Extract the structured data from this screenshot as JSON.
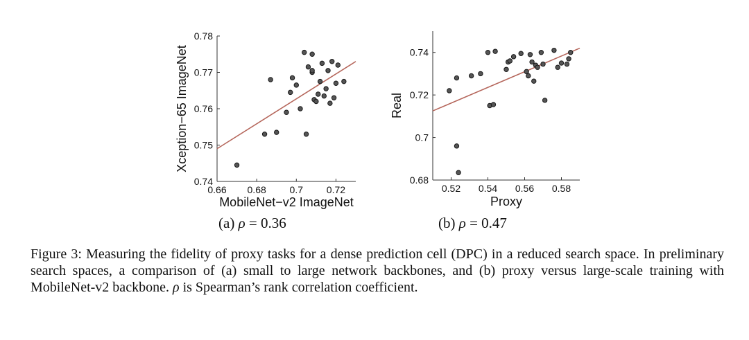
{
  "chart_data": [
    {
      "type": "scatter",
      "id": "a",
      "xlabel": "MobileNet−v2 ImageNet",
      "ylabel": "Xception−65 ImageNet",
      "xlim": [
        0.66,
        0.73
      ],
      "ylim": [
        0.74,
        0.78
      ],
      "xticks": [
        0.66,
        0.68,
        0.7,
        0.72
      ],
      "xtick_labels": [
        "0.66",
        "0.68",
        "0.7",
        "0.72"
      ],
      "yticks": [
        0.74,
        0.75,
        0.76,
        0.77,
        0.78
      ],
      "ytick_labels": [
        "0.74",
        "0.75",
        "0.76",
        "0.77",
        "0.78"
      ],
      "points": [
        [
          0.67,
          0.7445
        ],
        [
          0.684,
          0.753
        ],
        [
          0.687,
          0.768
        ],
        [
          0.69,
          0.7535
        ],
        [
          0.695,
          0.759
        ],
        [
          0.697,
          0.7645
        ],
        [
          0.698,
          0.7685
        ],
        [
          0.7,
          0.7665
        ],
        [
          0.702,
          0.76
        ],
        [
          0.704,
          0.7755
        ],
        [
          0.705,
          0.753
        ],
        [
          0.706,
          0.7715
        ],
        [
          0.708,
          0.77
        ],
        [
          0.708,
          0.7705
        ],
        [
          0.708,
          0.775
        ],
        [
          0.709,
          0.7625
        ],
        [
          0.71,
          0.762
        ],
        [
          0.711,
          0.764
        ],
        [
          0.712,
          0.7675
        ],
        [
          0.713,
          0.7725
        ],
        [
          0.714,
          0.7635
        ],
        [
          0.715,
          0.7655
        ],
        [
          0.716,
          0.7705
        ],
        [
          0.717,
          0.7615
        ],
        [
          0.718,
          0.773
        ],
        [
          0.719,
          0.763
        ],
        [
          0.72,
          0.767
        ],
        [
          0.721,
          0.772
        ],
        [
          0.724,
          0.7675
        ]
      ],
      "fit_line": {
        "x": [
          0.66,
          0.73
        ],
        "y": [
          0.749,
          0.773
        ]
      },
      "caption_prefix": "(a) ",
      "caption_rho": "ρ",
      "caption_value": " = 0.36"
    },
    {
      "type": "scatter",
      "id": "b",
      "xlabel": "Proxy",
      "ylabel": "Real",
      "xlim": [
        0.51,
        0.59
      ],
      "ylim": [
        0.68,
        0.75
      ],
      "xticks": [
        0.52,
        0.54,
        0.56,
        0.58
      ],
      "xtick_labels": [
        "0.52",
        "0.54",
        "0.56",
        "0.58"
      ],
      "yticks": [
        0.68,
        0.7,
        0.72,
        0.74
      ],
      "ytick_labels": [
        "0.68",
        "0.7",
        "0.72",
        "0.74"
      ],
      "points": [
        [
          0.519,
          0.722
        ],
        [
          0.523,
          0.728
        ],
        [
          0.523,
          0.696
        ],
        [
          0.524,
          0.6835
        ],
        [
          0.531,
          0.729
        ],
        [
          0.536,
          0.73
        ],
        [
          0.54,
          0.74
        ],
        [
          0.541,
          0.715
        ],
        [
          0.543,
          0.7155
        ],
        [
          0.544,
          0.7405
        ],
        [
          0.55,
          0.732
        ],
        [
          0.551,
          0.7355
        ],
        [
          0.552,
          0.736
        ],
        [
          0.554,
          0.738
        ],
        [
          0.558,
          0.7395
        ],
        [
          0.561,
          0.731
        ],
        [
          0.562,
          0.729
        ],
        [
          0.563,
          0.739
        ],
        [
          0.564,
          0.7355
        ],
        [
          0.565,
          0.7265
        ],
        [
          0.566,
          0.734
        ],
        [
          0.567,
          0.733
        ],
        [
          0.569,
          0.74
        ],
        [
          0.57,
          0.7345
        ],
        [
          0.571,
          0.7175
        ],
        [
          0.576,
          0.741
        ],
        [
          0.578,
          0.733
        ],
        [
          0.58,
          0.735
        ],
        [
          0.583,
          0.7345
        ],
        [
          0.584,
          0.737
        ],
        [
          0.585,
          0.74
        ]
      ],
      "fit_line": {
        "x": [
          0.51,
          0.59
        ],
        "y": [
          0.7125,
          0.742
        ]
      },
      "caption_prefix": "(b) ",
      "caption_rho": "ρ",
      "caption_value": " = 0.47"
    }
  ],
  "colors": {
    "fit_line": "#b5665b",
    "point_fill": "#555555",
    "point_stroke": "#1a1a1a",
    "axis": "#333333"
  },
  "caption": {
    "label": "Figure 3:",
    "text": "Measuring the fidelity of proxy tasks for a dense prediction cell (DPC) in a reduced search space. In preliminary search spaces, a comparison of (a) small to large network backbones, and (b) proxy versus large-scale training with MobileNet-v2 backbone.",
    "rho": "ρ",
    "tail": "is Spearman’s rank correlation coefficient."
  }
}
